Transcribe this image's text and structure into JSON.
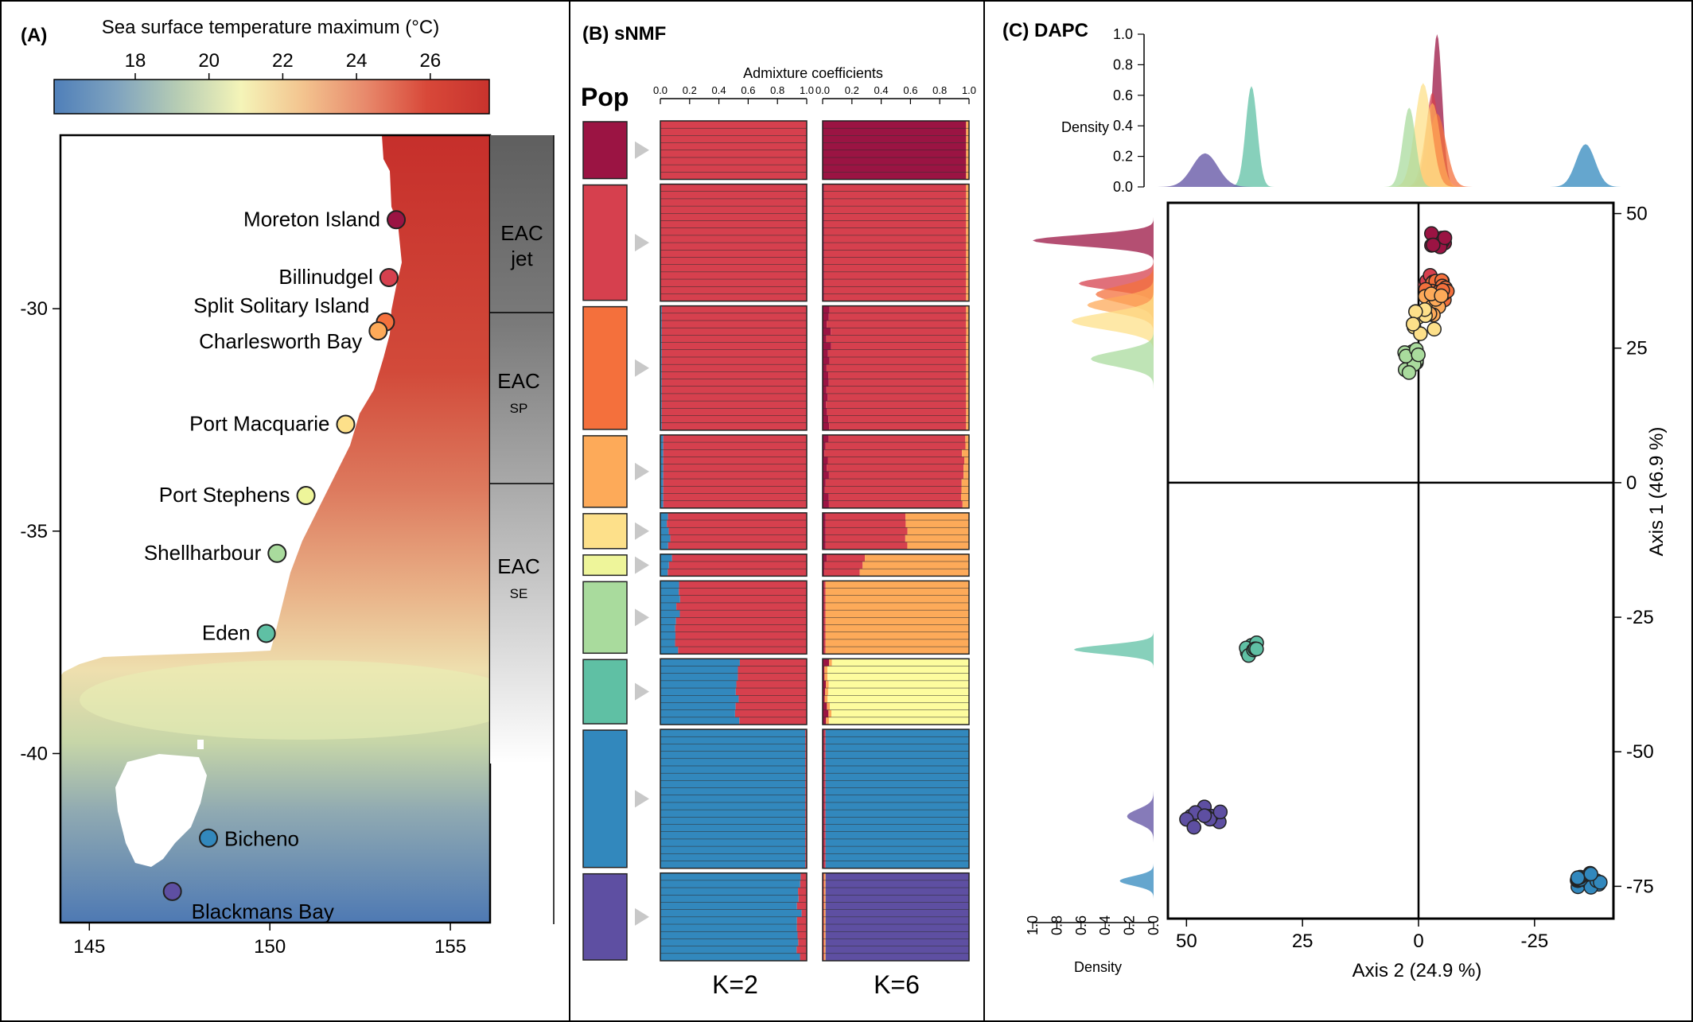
{
  "colors": {
    "pop": [
      "#9b1443",
      "#d6404e",
      "#f4703c",
      "#fdaa59",
      "#fde08a",
      "#eef59a",
      "#a9db9d",
      "#5fc0a4",
      "#3288bd",
      "#5e4fa2"
    ],
    "k2": {
      "red": "#d6404e",
      "blue": "#3288bd"
    },
    "k6": {
      "dark": "#9b1443",
      "red": "#d6404e",
      "orange": "#fdaa59",
      "yellow": "#fdfc9e",
      "blue": "#3288bd",
      "purple": "#5e4fa2"
    }
  },
  "panelA": {
    "label": "(A)",
    "colorbar_title": "Sea surface temperature maximum (°C)",
    "colorbar_ticks": [
      "18",
      "20",
      "22",
      "24",
      "26"
    ],
    "colorbar_range": [
      15.8,
      27.6
    ],
    "colorbar_stops": [
      "#4f7fb9",
      "#7fa3bf",
      "#b7cdb4",
      "#f4f4b8",
      "#f3c48f",
      "#e88a6c",
      "#d84839",
      "#c8332d"
    ],
    "x_ticks": [
      "145",
      "150",
      "155"
    ],
    "y_ticks": [
      "-30",
      "-35",
      "-40"
    ],
    "xlim": [
      144.2,
      156.1
    ],
    "ylim": [
      -43.8,
      -26.1
    ],
    "sites": [
      {
        "name": "Moreton Island",
        "lon": 153.5,
        "lat": -28.0,
        "color": "#9b1443"
      },
      {
        "name": "Billinudgel",
        "lon": 153.3,
        "lat": -29.3,
        "color": "#d6404e"
      },
      {
        "name": "Split Solitary Island",
        "lon": 153.2,
        "lat": -30.3,
        "color": "#f4703c"
      },
      {
        "name": "Charlesworth Bay",
        "lon": 153.0,
        "lat": -30.5,
        "color": "#fdaa59"
      },
      {
        "name": "Port Macquarie",
        "lon": 152.1,
        "lat": -32.6,
        "color": "#fde08a"
      },
      {
        "name": "Port Stephens",
        "lon": 151.0,
        "lat": -34.2,
        "color": "#eef59a"
      },
      {
        "name": "Shellharbour",
        "lon": 150.2,
        "lat": -35.5,
        "color": "#a9db9d"
      },
      {
        "name": "Eden",
        "lon": 149.9,
        "lat": -37.3,
        "color": "#5fc0a4"
      },
      {
        "name": "Bicheno",
        "lon": 148.3,
        "lat": -41.9,
        "color": "#3288bd"
      },
      {
        "name": "Blackmans Bay",
        "lon": 147.3,
        "lat": -43.1,
        "color": "#5e4fa2"
      }
    ],
    "eac_zones": [
      {
        "title": "EAC",
        "sub": "jet"
      },
      {
        "title": "EAC",
        "sub": "SP"
      },
      {
        "title": "EAC",
        "sub": "SE"
      }
    ]
  },
  "panelB": {
    "label": "(B) sNMF",
    "pop_label": "Pop",
    "axis_title": "Admixture coefficients",
    "tick_labels": [
      "0.0",
      "0.2",
      "0.4",
      "0.6",
      "0.8",
      "1.0"
    ],
    "k_labels": [
      "K=2",
      "K=6"
    ],
    "groups": [
      {
        "n": 8,
        "k2_blue": 0.0,
        "k6": [
          [
            "dark",
            0.98
          ],
          [
            "red",
            0.0
          ],
          [
            "orange",
            0.02
          ],
          [
            "yellow",
            0
          ],
          [
            "blue",
            0
          ],
          [
            "purple",
            0
          ]
        ]
      },
      {
        "n": 16,
        "k2_blue": 0.0,
        "k6": [
          [
            "dark",
            0.01
          ],
          [
            "red",
            0.97
          ],
          [
            "orange",
            0.02
          ],
          [
            "yellow",
            0
          ],
          [
            "blue",
            0
          ],
          [
            "purple",
            0
          ]
        ]
      },
      {
        "n": 17,
        "k2_blue": 0.01,
        "k6": [
          [
            "dark",
            0.04
          ],
          [
            "red",
            0.94
          ],
          [
            "orange",
            0.02
          ],
          [
            "yellow",
            0
          ],
          [
            "blue",
            0
          ],
          [
            "purple",
            0
          ]
        ]
      },
      {
        "n": 10,
        "k2_blue": 0.02,
        "k6": [
          [
            "dark",
            0.03
          ],
          [
            "red",
            0.93
          ],
          [
            "orange",
            0.04
          ],
          [
            "yellow",
            0
          ],
          [
            "blue",
            0
          ],
          [
            "purple",
            0
          ]
        ]
      },
      {
        "n": 5,
        "k2_blue": 0.05,
        "k6": [
          [
            "dark",
            0.02
          ],
          [
            "red",
            0.55
          ],
          [
            "orange",
            0.43
          ],
          [
            "yellow",
            0
          ],
          [
            "blue",
            0
          ],
          [
            "purple",
            0
          ]
        ]
      },
      {
        "n": 3,
        "k2_blue": 0.06,
        "k6": [
          [
            "dark",
            0.03
          ],
          [
            "red",
            0.25
          ],
          [
            "orange",
            0.72
          ],
          [
            "yellow",
            0
          ],
          [
            "blue",
            0
          ],
          [
            "purple",
            0
          ]
        ]
      },
      {
        "n": 10,
        "k2_blue": 0.12,
        "k6": [
          [
            "dark",
            0.01
          ],
          [
            "red",
            0.01
          ],
          [
            "orange",
            0.98
          ],
          [
            "yellow",
            0
          ],
          [
            "blue",
            0
          ],
          [
            "purple",
            0
          ]
        ]
      },
      {
        "n": 9,
        "k2_blue": 0.53,
        "k6": [
          [
            "dark",
            0.03
          ],
          [
            "red",
            0.0
          ],
          [
            "orange",
            0.02
          ],
          [
            "yellow",
            0.95
          ],
          [
            "blue",
            0
          ],
          [
            "purple",
            0
          ]
        ]
      },
      {
        "n": 19,
        "k2_blue": 0.99,
        "k6": [
          [
            "dark",
            0.01
          ],
          [
            "red",
            0.01
          ],
          [
            "orange",
            0.0
          ],
          [
            "yellow",
            0
          ],
          [
            "blue",
            0.98
          ],
          [
            "purple",
            0
          ]
        ]
      },
      {
        "n": 12,
        "k2_blue": 0.95,
        "k6": [
          [
            "dark",
            0.0
          ],
          [
            "red",
            0.01
          ],
          [
            "orange",
            0.01
          ],
          [
            "yellow",
            0
          ],
          [
            "blue",
            0.0
          ],
          [
            "purple",
            0.98
          ]
        ]
      }
    ]
  },
  "chart_data": [
    {
      "type": "scatter",
      "title": "(C) DAPC",
      "xlabel": "Axis 2 (24.9 %)",
      "ylabel": "Axis 1 (46.9 %)",
      "xlim": [
        54,
        -42
      ],
      "ylim": [
        -81,
        52
      ],
      "x_ticks": [
        "50",
        "25",
        "0",
        "-25"
      ],
      "y_ticks": [
        "50",
        "25",
        "0",
        "-25",
        "-50",
        "-75"
      ],
      "top_density": {
        "label": "Density",
        "ticks": [
          "0.0",
          "0.2",
          "0.4",
          "0.6",
          "0.8",
          "1.0"
        ]
      },
      "left_density": {
        "label": "Density",
        "ticks": [
          "1.0",
          "0.8",
          "0.6",
          "0.4",
          "0.2",
          "0.0"
        ]
      },
      "series": [
        {
          "color": "#9b1443",
          "x": -4,
          "y": 45,
          "sx": 0.8,
          "sy": 0.9,
          "n": 8,
          "peak": 1.0
        },
        {
          "color": "#d6404e",
          "x": -3,
          "y": 37,
          "sx": 1.0,
          "sy": 1.0,
          "n": 16,
          "peak": 0.62
        },
        {
          "color": "#f4703c",
          "x": -4,
          "y": 35,
          "sx": 1.4,
          "sy": 1.3,
          "n": 17,
          "peak": 0.48
        },
        {
          "color": "#fdaa59",
          "x": -3,
          "y": 33,
          "sx": 1.2,
          "sy": 1.2,
          "n": 10,
          "peak": 0.55
        },
        {
          "color": "#fde08a",
          "x": -1,
          "y": 30,
          "sx": 1.3,
          "sy": 1.3,
          "n": 10,
          "peak": 0.68
        },
        {
          "color": "#a9db9d",
          "x": 2,
          "y": 23,
          "sx": 1.0,
          "sy": 1.2,
          "n": 10,
          "peak": 0.52
        },
        {
          "color": "#5fc0a4",
          "x": 36,
          "y": -31,
          "sx": 0.9,
          "sy": 0.7,
          "n": 9,
          "peak": 0.66
        },
        {
          "color": "#5e4fa2",
          "x": 46,
          "y": -62,
          "sx": 2.0,
          "sy": 1.1,
          "n": 12,
          "peak": 0.22
        },
        {
          "color": "#3288bd",
          "x": -36,
          "y": -74,
          "sx": 1.5,
          "sy": 0.7,
          "n": 19,
          "peak": 0.28
        }
      ]
    }
  ]
}
